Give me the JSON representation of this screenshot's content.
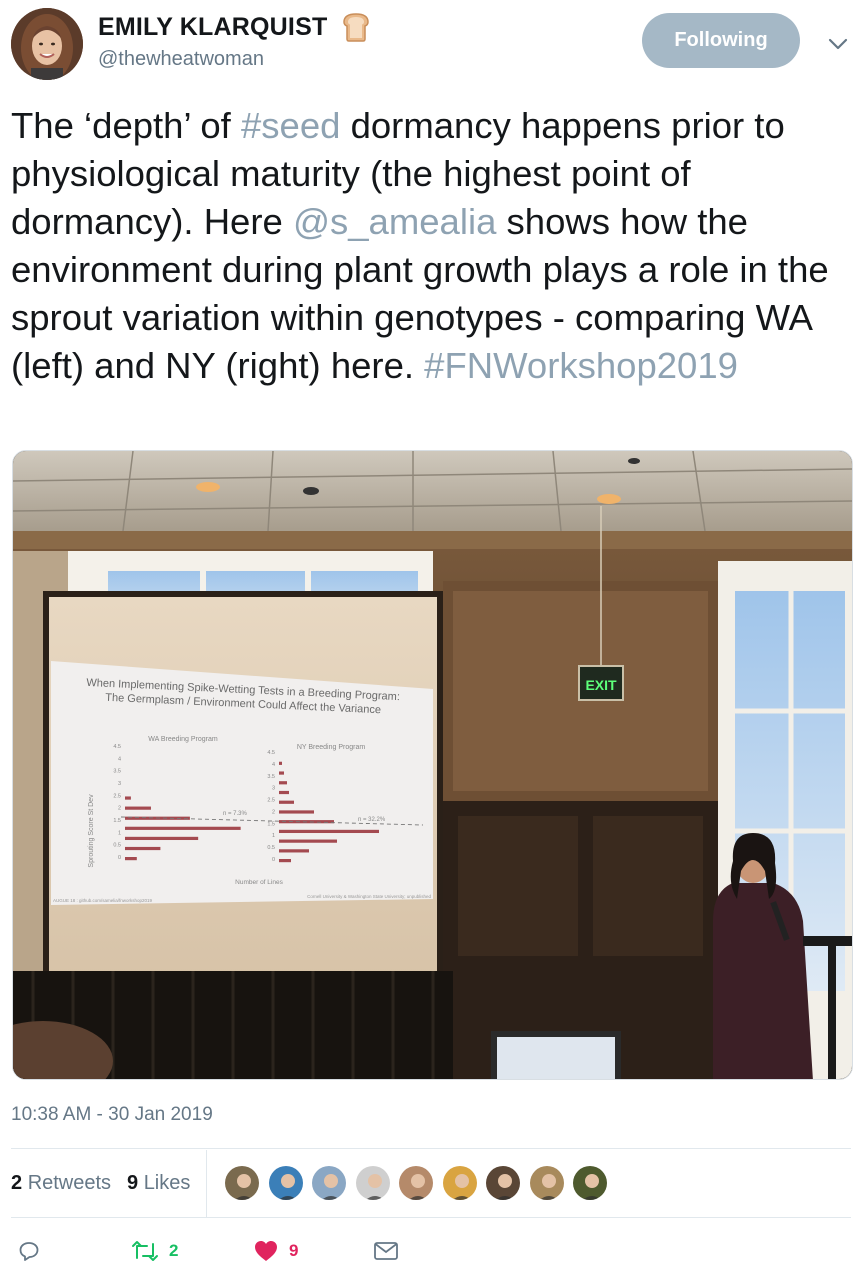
{
  "user": {
    "display_name": "EMILY KLARQUIST",
    "handle": "@thewheatwoman",
    "emoji": "bread-emoji"
  },
  "follow_button": {
    "label": "Following"
  },
  "tweet": {
    "segments": [
      {
        "text": "The ‘depth’ of ",
        "type": "text"
      },
      {
        "text": "#seed",
        "type": "link"
      },
      {
        "text": " dormancy happens prior to physiological maturity (the highest point of dormancy). Here ",
        "type": "text"
      },
      {
        "text": "@s_amealia",
        "type": "link"
      },
      {
        "text": " shows how the environment during plant growth plays a role in the sprout variation within genotypes - comparing WA (left) and NY (right) here. ",
        "type": "text"
      },
      {
        "text": "#FNWorkshop2019",
        "type": "link"
      }
    ]
  },
  "photo": {
    "slide_title_line1": "When Implementing Spike-Wetting Tests in a Breeding Program:",
    "slide_title_line2": "The Germplasm / Environment Could Affect the Variance",
    "left_panel_title": "WA Breeding Program",
    "right_panel_title": "NY Breeding Program",
    "left_pct": "n = 7.3%",
    "right_pct": "n = 32.2%",
    "y_axis_label": "Sprouting Score St Dev",
    "x_axis_label": "Number of Lines",
    "y_ticks": [
      "4.5",
      "4",
      "3.5",
      "3",
      "2.5",
      "2",
      "1.5",
      "1",
      "0.5",
      "0"
    ],
    "left_bars": [
      0,
      0,
      0,
      0,
      0,
      0.05,
      0.22,
      0.55,
      0.98,
      0.62,
      0.3,
      0.1
    ],
    "right_bars": [
      0,
      0.03,
      0.05,
      0.08,
      0.1,
      0.15,
      0.35,
      0.55,
      1.0,
      0.58,
      0.3,
      0.12
    ],
    "footer_left": "AUGUE 18 : github.com/samelia/fnworkshop2019",
    "footer_right": "Cornell University & Washington State University; unpublished",
    "exit_sign": "EXIT"
  },
  "timestamp": "10:38 AM - 30 Jan 2019",
  "stats": {
    "retweets_count": "2",
    "retweets_label": "Retweets",
    "likes_count": "9",
    "likes_label": "Likes"
  },
  "likers": [
    {
      "name": "liker-1",
      "bg": "#7a6a4e"
    },
    {
      "name": "liker-2",
      "bg": "#3b7fb8"
    },
    {
      "name": "liker-3",
      "bg": "#8aa7c4"
    },
    {
      "name": "liker-4",
      "bg": "#cfcfcf"
    },
    {
      "name": "liker-5",
      "bg": "#b58a6a"
    },
    {
      "name": "liker-6",
      "bg": "#d9a441"
    },
    {
      "name": "liker-7",
      "bg": "#5a4636"
    },
    {
      "name": "liker-8",
      "bg": "#a88a5c"
    },
    {
      "name": "liker-9",
      "bg": "#4e5a2e"
    }
  ],
  "actions": {
    "retweet_count": "2",
    "like_count": "9"
  },
  "colors": {
    "link": "#8ea2b2",
    "retweet_green": "#17bf63",
    "like_red": "#e0245e",
    "muted": "#657786",
    "follow_bg": "#a5b8c6"
  }
}
